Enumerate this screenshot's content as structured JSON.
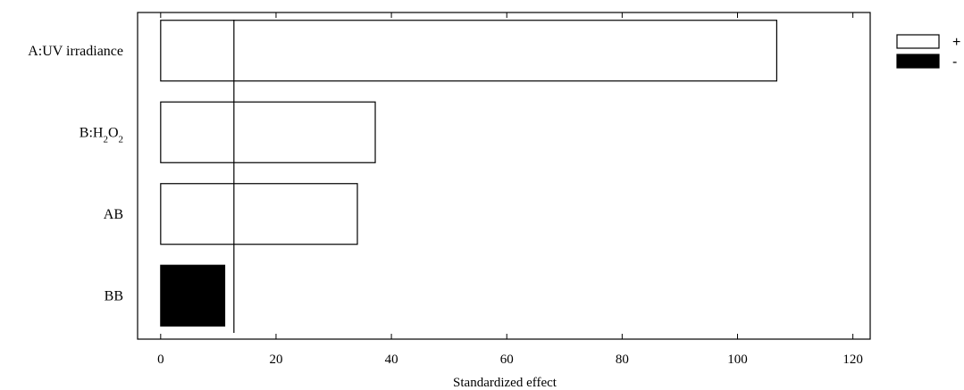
{
  "chart_data": {
    "type": "bar",
    "orientation": "horizontal",
    "categories": [
      "A:UV irradiance",
      "B:H2O2",
      "AB",
      "BB"
    ],
    "category_labels": [
      {
        "parts": [
          {
            "text": "A:UV irradiance"
          }
        ]
      },
      {
        "parts": [
          {
            "text": "B:H"
          },
          {
            "text": "2",
            "sub": true
          },
          {
            "text": "O"
          },
          {
            "text": "2",
            "sub": true
          }
        ]
      },
      {
        "parts": [
          {
            "text": "AB"
          }
        ]
      },
      {
        "parts": [
          {
            "text": "BB"
          }
        ]
      }
    ],
    "values": [
      106.8,
      37.2,
      34.1,
      11.1
    ],
    "signs": [
      "+",
      "+",
      "+",
      "-"
    ],
    "reference_line": 12.7,
    "xlabel": "Standardized effect",
    "ylabel": "",
    "title": "",
    "xlim": [
      -4,
      123
    ],
    "xticks": [
      0,
      20,
      40,
      60,
      80,
      100,
      120
    ],
    "legend": [
      {
        "label": "+",
        "fill": "#ffffff"
      },
      {
        "label": "-",
        "fill": "#000000"
      }
    ],
    "legend_position": "top-right",
    "grid": false,
    "colors": {
      "positive": "#ffffff",
      "negative": "#000000",
      "stroke": "#000000"
    }
  }
}
